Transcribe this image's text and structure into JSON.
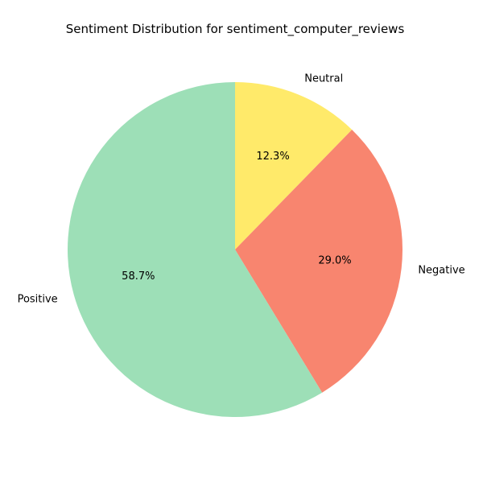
{
  "chart_data": {
    "type": "pie",
    "title": "Sentiment Distribution for sentiment_computer_reviews",
    "start_angle_deg": 90,
    "direction": "clockwise",
    "slices": [
      {
        "label": "Neutral",
        "value": 12.3,
        "pct_label": "12.3%",
        "color": "#ffea6a"
      },
      {
        "label": "Negative",
        "value": 29.0,
        "pct_label": "29.0%",
        "color": "#f8856f"
      },
      {
        "label": "Positive",
        "value": 58.7,
        "pct_label": "58.7%",
        "color": "#9ddfb7"
      }
    ]
  }
}
